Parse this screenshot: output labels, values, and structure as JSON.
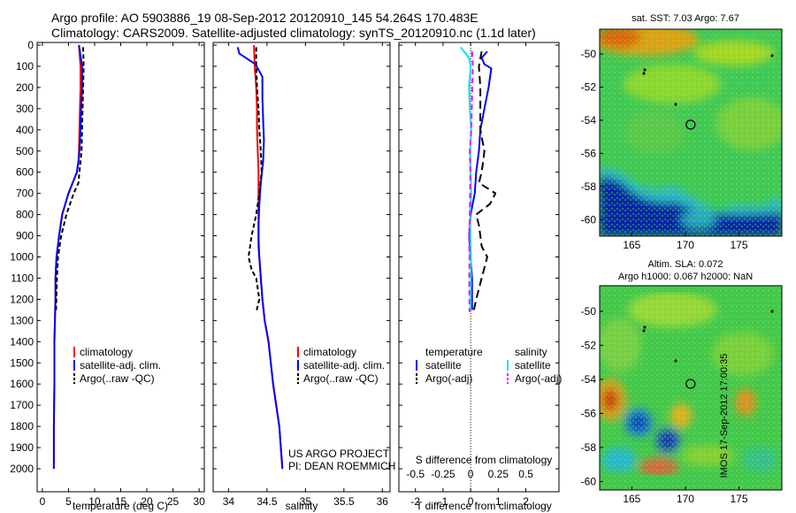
{
  "header": {
    "line1": "Argo profile: AO 5903886_19 08-Sep-2012 20120910_145 54.264S 170.483E",
    "line2": "Climatology: CARS2009. Satellite-adjusted climatology: synTS_20120910.nc (1.1d later)"
  },
  "colors": {
    "red": "#ff0000",
    "blue": "#0000ff",
    "black": "#000000",
    "cyan": "#00e5ee",
    "magenta": "#ff00ff"
  },
  "chart_data": [
    {
      "type": "line",
      "name": "temperature-panel",
      "xlabel": "temperature (deg C)",
      "ylabel": "",
      "xlim": [
        -1,
        31
      ],
      "ylim": [
        2050,
        0
      ],
      "y_reversed": true,
      "xticks": [
        0,
        5,
        10,
        15,
        20,
        25,
        30
      ],
      "yticks": [
        0,
        100,
        200,
        300,
        400,
        500,
        600,
        700,
        800,
        900,
        1000,
        1100,
        1200,
        1300,
        1400,
        1500,
        1600,
        1700,
        1800,
        1900,
        2000
      ],
      "legend": [
        "climatology",
        "satellite-adj. clim.",
        "Argo(..raw -QC)"
      ],
      "series": [
        {
          "name": "climatology",
          "color": "red",
          "dash": "",
          "x": [
            7.0,
            7.3,
            7.3,
            7.2,
            7.1,
            7.0,
            6.9,
            6.6,
            5.0,
            3.8,
            3.2,
            2.7,
            2.5,
            2.5,
            2.4,
            2.3,
            2.3,
            2.3,
            2.2,
            2.2
          ],
          "y": [
            0,
            100,
            200,
            300,
            400,
            500,
            550,
            600,
            700,
            800,
            900,
            1000,
            1100,
            1200,
            1300,
            1400,
            1500,
            1600,
            1800,
            2000
          ]
        },
        {
          "name": "satellite-adj. clim.",
          "color": "blue",
          "dash": "",
          "x": [
            7.0,
            7.6,
            7.6,
            7.4,
            7.3,
            7.1,
            6.9,
            6.6,
            5.0,
            3.8,
            3.2,
            2.7,
            2.5,
            2.5,
            2.4,
            2.3,
            2.3,
            2.3,
            2.2,
            2.2
          ],
          "y": [
            0,
            100,
            200,
            300,
            400,
            500,
            550,
            600,
            700,
            800,
            900,
            1000,
            1100,
            1200,
            1300,
            1400,
            1500,
            1600,
            1800,
            2000
          ]
        },
        {
          "name": "Argo(..raw -QC)",
          "color": "black",
          "dash": "5,3",
          "x": [
            7.8,
            7.9,
            7.8,
            7.7,
            7.6,
            7.5,
            7.3,
            7.1,
            6.9,
            6.0,
            4.6,
            3.6,
            3.0,
            2.8,
            2.6
          ],
          "y": [
            10,
            100,
            200,
            300,
            400,
            500,
            550,
            600,
            650,
            700,
            800,
            900,
            1000,
            1100,
            1260
          ]
        }
      ]
    },
    {
      "type": "line",
      "name": "salinity-panel",
      "xlabel": "salinity",
      "ylabel": "",
      "xlim": [
        33.8,
        36.1
      ],
      "ylim": [
        2050,
        0
      ],
      "y_reversed": true,
      "xticks": [
        34,
        34.5,
        35,
        35.5,
        36
      ],
      "xticklabels": [
        "34",
        "34.5",
        "35",
        "35.5",
        "36"
      ],
      "legend": [
        "climatology",
        "satellite-adj. clim.",
        "Argo(..raw -QC)"
      ],
      "annotation": [
        "US ARGO PROJECT",
        "PI: DEAN ROEMMICH"
      ],
      "series": [
        {
          "name": "climatology",
          "color": "red",
          "dash": "",
          "x": [
            34.33,
            34.34,
            34.36,
            34.37,
            34.37,
            34.38,
            34.39,
            34.39,
            34.39,
            34.39,
            34.4,
            34.42,
            34.44,
            34.47,
            34.52,
            34.58,
            34.66,
            34.7
          ],
          "y": [
            0,
            100,
            200,
            300,
            400,
            500,
            600,
            700,
            800,
            900,
            1000,
            1100,
            1200,
            1300,
            1400,
            1600,
            1800,
            2000
          ]
        },
        {
          "name": "satellite-adj. clim.",
          "color": "blue",
          "dash": "",
          "x": [
            34.12,
            34.14,
            34.35,
            34.44,
            34.44,
            34.45,
            34.46,
            34.45,
            34.42,
            34.4,
            34.39,
            34.39,
            34.4,
            34.42,
            34.44,
            34.47,
            34.52,
            34.58,
            34.66,
            34.7
          ],
          "y": [
            10,
            40,
            90,
            150,
            250,
            350,
            450,
            550,
            650,
            750,
            850,
            950,
            1000,
            1100,
            1200,
            1300,
            1400,
            1600,
            1800,
            2000
          ]
        },
        {
          "name": "Argo(..raw -QC)",
          "color": "black",
          "dash": "5,3",
          "x": [
            34.36,
            34.36,
            34.37,
            34.39,
            34.4,
            34.42,
            34.43,
            34.4,
            34.36,
            34.3,
            34.26,
            34.3,
            34.36,
            34.4,
            34.36
          ],
          "y": [
            10,
            100,
            200,
            300,
            400,
            500,
            600,
            700,
            800,
            900,
            1000,
            1060,
            1100,
            1200,
            1260
          ]
        }
      ]
    },
    {
      "type": "line",
      "name": "difference-panel",
      "xlabel": "T difference from climatology",
      "xlabel_top": "S difference from climatology",
      "top_ticklabels": [
        "-0.5",
        "-0.25",
        "0",
        "0.25",
        "0.5"
      ],
      "xlim": [
        -2.6,
        3.2
      ],
      "ylim": [
        2050,
        0
      ],
      "y_reversed": true,
      "xticks": [
        -2,
        -1,
        0,
        1,
        2
      ],
      "legend_temperature": [
        "temperature",
        "satellite",
        "Argo(-adj)"
      ],
      "legend_salinity": [
        "salinity",
        "satellite",
        "Argo(-adj)"
      ],
      "series": [
        {
          "name": "temperature satellite",
          "color": "blue",
          "dash": "",
          "x": [
            0.6,
            0.4,
            0.5,
            0.75,
            0.65,
            0.5,
            0.35,
            0.3,
            0.2,
            0.15,
            0.0,
            -0.05,
            0.0,
            0.05,
            0.05,
            0.05
          ],
          "y": [
            30,
            60,
            90,
            110,
            200,
            300,
            400,
            500,
            600,
            700,
            800,
            900,
            1000,
            1100,
            1200,
            1250
          ]
        },
        {
          "name": "temperature Argo(-adj)",
          "color": "black",
          "dash": "9,5",
          "x": [
            0.4,
            0.3,
            0.35,
            0.35,
            0.35,
            0.5,
            0.45,
            0.4,
            0.3,
            0.9,
            0.7,
            0.2,
            0.3,
            0.35,
            0.4,
            0.6,
            0.4,
            0.2,
            0.1
          ],
          "y": [
            30,
            100,
            200,
            300,
            400,
            500,
            550,
            600,
            650,
            700,
            750,
            800,
            850,
            900,
            950,
            1000,
            1100,
            1200,
            1260
          ]
        },
        {
          "name": "salinity satellite",
          "color": "cyan",
          "dash": "",
          "x": [
            -0.36,
            -0.06,
            0.0,
            -0.06,
            -0.03,
            0.02,
            -0.02,
            0.0,
            0.02,
            -0.02,
            -0.01,
            0.01,
            0.0
          ],
          "y": [
            10,
            60,
            100,
            200,
            300,
            400,
            500,
            600,
            700,
            800,
            900,
            1000,
            1250
          ]
        },
        {
          "name": "salinity Argo(-adj)",
          "color": "magenta",
          "dash": "6,4",
          "x": [
            0.05,
            0.08,
            0.06,
            0.04,
            0.02,
            -0.03,
            -0.01,
            -0.02,
            -0.03,
            -0.06,
            -0.04,
            -0.05,
            -0.04
          ],
          "y": [
            30,
            100,
            200,
            300,
            400,
            500,
            600,
            700,
            800,
            900,
            1000,
            1100,
            1260
          ]
        }
      ]
    },
    {
      "type": "heatmap",
      "name": "sst-map",
      "title": "sat. SST: 7.03 Argo: 7.67",
      "xticks": [
        165,
        170,
        175
      ],
      "yticks": [
        -50,
        -52,
        -54,
        -56,
        -58,
        -60
      ],
      "xlim": [
        162,
        179
      ],
      "ylim": [
        -61,
        -48.5
      ],
      "profile_position": {
        "lon": 170.483,
        "lat": -54.264
      }
    },
    {
      "type": "heatmap",
      "name": "sla-map",
      "title_line1": "Altim. SLA: 0.072",
      "title_line2": "Argo h1000: 0.067 h2000: NaN",
      "xticks": [
        165,
        170,
        175
      ],
      "yticks": [
        -50,
        -52,
        -54,
        -56,
        -58,
        -60
      ],
      "xlim": [
        162,
        179
      ],
      "ylim": [
        -60.5,
        -48.5
      ],
      "profile_position": {
        "lon": 170.483,
        "lat": -54.264
      }
    }
  ],
  "stamp": "IMOS 17-Sep-2012 17:00:35"
}
